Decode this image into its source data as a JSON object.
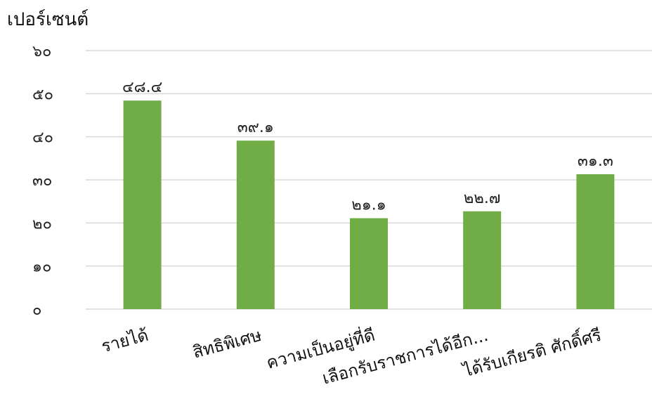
{
  "chart_data": {
    "type": "bar",
    "title": "",
    "ylabel": "เปอร์เซนต์",
    "xlabel": "",
    "categories": [
      "รายได้",
      "สิทธิพิเศษ",
      "ความเป็นอยู่ที่ดี",
      "เลือกรับราชการได้อีก...",
      "ได้รับเกียรติ ศักดิ์ศรี"
    ],
    "values": [
      48.4,
      39.1,
      21.1,
      22.7,
      31.3
    ],
    "value_labels": [
      "๔๘.๔",
      "๓๙.๑",
      "๒๑.๑",
      "๒๒.๗",
      "๓๑.๓"
    ],
    "yticks": [
      0,
      10,
      20,
      30,
      40,
      50,
      60
    ],
    "ytick_labels": [
      "๐",
      "๑๐",
      "๒๐",
      "๓๐",
      "๔๐",
      "๕๐",
      "๖๐"
    ],
    "ylim": [
      0,
      60
    ],
    "grid": true,
    "legend": "none",
    "bar_color": "#70ad47",
    "grid_color": "#d9d9d9"
  }
}
